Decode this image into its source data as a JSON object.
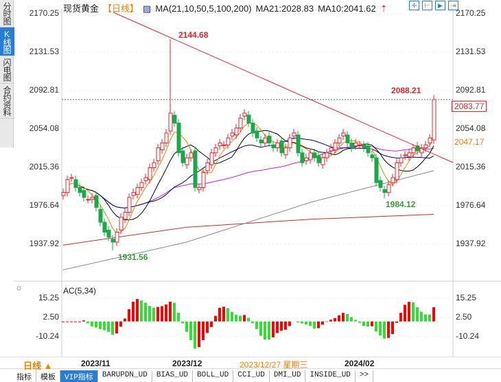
{
  "sidebar": {
    "tabs": [
      "分时图",
      "K线图",
      "闪电图",
      "合约资料"
    ],
    "active": 1
  },
  "header": {
    "symbol": "现货黄金",
    "period": "【日线】",
    "ma_label": "MA(21,10,50,5,100,200)",
    "ma21": "MA21:2028.83",
    "ma10": "MA10:2041.62"
  },
  "price_axis": [
    "2170.25",
    "2131.53",
    "2092.81",
    "2054.08",
    "2015.36",
    "1976.64",
    "1937.92"
  ],
  "price_ticks": [
    2170.25,
    2131.53,
    2092.81,
    2054.08,
    2015.36,
    1976.64,
    1937.92
  ],
  "tags": {
    "current": "2083.77",
    "ma": "2047.17"
  },
  "annotations": {
    "high": "2144.68",
    "high_value": 2144.68,
    "low1": "1931.56",
    "low1_value": 1931.56,
    "low2": "1984.12",
    "low2_value": 1984.12,
    "recent_high": "2088.21",
    "recent_high_value": 2088.21
  },
  "closes": [
    1990,
    2003,
    2005,
    1995,
    1990,
    1985,
    1983,
    1985,
    1975,
    1960,
    1950,
    1945,
    1940,
    1950,
    1965,
    1970,
    1985,
    1990,
    1995,
    2000,
    2005,
    2015,
    2020,
    2035,
    2040,
    2050,
    2070,
    2060,
    2030,
    2020,
    2025,
    2030,
    1995,
    1995,
    2010,
    2020,
    2030,
    2035,
    2040,
    2038,
    2045,
    2050,
    2055,
    2065,
    2070,
    2060,
    2050,
    2045,
    2040,
    2045,
    2040,
    2035,
    2040,
    2030,
    2035,
    2045,
    2050,
    2030,
    2020,
    2025,
    2030,
    2025,
    2020,
    2025,
    2030,
    2035,
    2040,
    2045,
    2050,
    2040,
    2035,
    2040,
    2038,
    2035,
    2030,
    2025,
    2000,
    1995,
    1990,
    1998,
    2005,
    2020,
    2025,
    2028,
    2030,
    2035,
    2032,
    2035,
    2038,
    2045,
    2083.77
  ],
  "long_ma": {
    "ma100": [
      1912,
      1940,
      1980,
      2012
    ],
    "ma200": [
      1937,
      1955,
      1963,
      1968
    ]
  },
  "indicator": {
    "label": "AC(5,34)",
    "axis": [
      "15.25",
      "2.50",
      "-10.24"
    ],
    "ticks": [
      15.25,
      2.5,
      -10.24
    ]
  },
  "colors": {
    "up": "#e8232b",
    "down": "#1aa84a",
    "ac_up": "#ff0000",
    "ac_down": "#33dd33",
    "trend": "#e8232b"
  },
  "xaxis": {
    "period": "日线 ▲",
    "labels": [
      "2023/11",
      "2023/12",
      "2024/02"
    ],
    "cursor_date": "2023/12/27 星期三"
  },
  "bottom_tabs": [
    "指标",
    "模板",
    "VIP指标",
    "BARUPDN_UD",
    "BIAS_UD",
    "BOLL_UD",
    "CCI_UD",
    "DMI_UD",
    "INSIDE_UD",
    ">>"
  ]
}
